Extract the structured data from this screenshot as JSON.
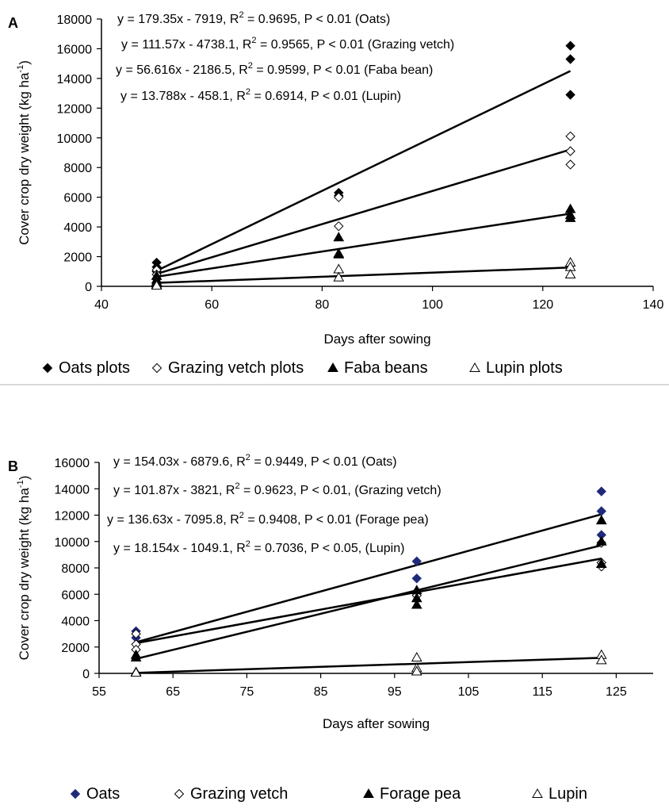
{
  "chart_data": [
    {
      "panel_label": "A",
      "type": "scatter",
      "xlabel": "Days after sowing",
      "ylabel_main": "Cover crop dry weight (kg ha",
      "ylabel_sup": "-1",
      "ylabel_close": ")",
      "xlim": [
        40,
        140
      ],
      "ylim": [
        0,
        18000
      ],
      "xticks": [
        40,
        60,
        80,
        100,
        120,
        140
      ],
      "yticks": [
        0,
        2000,
        4000,
        6000,
        8000,
        10000,
        12000,
        14000,
        16000,
        18000
      ],
      "series": [
        {
          "name": "Oats plots",
          "marker": "diamond-filled",
          "color": "#000000",
          "points": [
            [
              50,
              1600
            ],
            [
              50,
              1300
            ],
            [
              50,
              1000
            ],
            [
              83,
              6300
            ],
            [
              83,
              6100
            ],
            [
              125,
              16200
            ],
            [
              125,
              15300
            ],
            [
              125,
              12900
            ]
          ],
          "fit": {
            "slope": 179.35,
            "intercept": -7919
          }
        },
        {
          "name": "Grazing vetch plots",
          "marker": "diamond-open",
          "color": "#000000",
          "points": [
            [
              50,
              1100
            ],
            [
              50,
              800
            ],
            [
              50,
              500
            ],
            [
              83,
              6000
            ],
            [
              83,
              4050
            ],
            [
              125,
              10100
            ],
            [
              125,
              9100
            ],
            [
              125,
              8200
            ]
          ],
          "fit": {
            "slope": 111.57,
            "intercept": -4738.1
          }
        },
        {
          "name": "Faba beans",
          "marker": "triangle-filled",
          "color": "#000000",
          "points": [
            [
              50,
              700
            ],
            [
              50,
              450
            ],
            [
              50,
              300
            ],
            [
              83,
              3300
            ],
            [
              83,
              2200
            ],
            [
              83,
              2150
            ],
            [
              125,
              5200
            ],
            [
              125,
              4800
            ],
            [
              125,
              4600
            ]
          ],
          "fit": {
            "slope": 56.616,
            "intercept": -2186.5
          }
        },
        {
          "name": "Lupin plots",
          "marker": "triangle-open",
          "color": "#000000",
          "points": [
            [
              50,
              200
            ],
            [
              50,
              100
            ],
            [
              50,
              50
            ],
            [
              83,
              1150
            ],
            [
              83,
              600
            ],
            [
              125,
              1600
            ],
            [
              125,
              1300
            ],
            [
              125,
              800
            ]
          ],
          "fit": {
            "slope": 13.788,
            "intercept": -458.1
          }
        }
      ],
      "equations": [
        {
          "main": "y = 179.35x - 7919, R",
          "sup": "2",
          "tail": " = 0.9695, P < 0.01 (Oats)"
        },
        {
          "main": "y = 111.57x - 4738.1, R",
          "sup": "2",
          "tail": " = 0.9565, P < 0.01 (Grazing vetch)"
        },
        {
          "main": "y = 56.616x - 2186.5, R",
          "sup": "2",
          "tail": " = 0.9599, P < 0.01 (Faba bean)"
        },
        {
          "main": "y = 13.788x - 458.1, R",
          "sup": "2",
          "tail": " = 0.6914, P < 0.01 (Lupin)"
        }
      ],
      "legend_placement": "bottom"
    },
    {
      "panel_label": "B",
      "type": "scatter",
      "xlabel": "Days after sowing",
      "ylabel_main": "Cover crop dry weight (kg ha",
      "ylabel_sup": "-1",
      "ylabel_close": ")",
      "xlim": [
        55,
        130
      ],
      "ylim": [
        0,
        16000
      ],
      "xticks": [
        55,
        65,
        75,
        85,
        95,
        105,
        115,
        125
      ],
      "yticks": [
        0,
        2000,
        4000,
        6000,
        8000,
        10000,
        12000,
        14000,
        16000
      ],
      "series": [
        {
          "name": "Oats",
          "marker": "diamond-filled",
          "color": "#1f2b7a",
          "points": [
            [
              60,
              3200
            ],
            [
              60,
              2700
            ],
            [
              98,
              8500
            ],
            [
              98,
              7200
            ],
            [
              123,
              13800
            ],
            [
              123,
              12300
            ],
            [
              123,
              10500
            ]
          ],
          "fit": {
            "slope": 154.03,
            "intercept": -6879.6
          }
        },
        {
          "name": "Grazing vetch",
          "marker": "diamond-open",
          "color": "#000000",
          "points": [
            [
              60,
              3000
            ],
            [
              60,
              2200
            ],
            [
              60,
              1800
            ],
            [
              98,
              6200
            ],
            [
              98,
              5900
            ],
            [
              123,
              9900
            ],
            [
              123,
              8400
            ],
            [
              123,
              8100
            ]
          ],
          "fit": {
            "slope": 101.87,
            "intercept": -3821
          }
        },
        {
          "name": "Forage pea",
          "marker": "triangle-filled",
          "color": "#000000",
          "points": [
            [
              60,
              1400
            ],
            [
              60,
              1200
            ],
            [
              98,
              6300
            ],
            [
              98,
              5700
            ],
            [
              98,
              5200
            ],
            [
              123,
              11600
            ],
            [
              123,
              10000
            ],
            [
              123,
              8300
            ]
          ],
          "fit": {
            "slope": 136.63,
            "intercept": -7095.8
          }
        },
        {
          "name": "Lupin",
          "marker": "triangle-open",
          "color": "#000000",
          "points": [
            [
              60,
              100
            ],
            [
              60,
              50
            ],
            [
              98,
              1200
            ],
            [
              98,
              400
            ],
            [
              98,
              150
            ],
            [
              123,
              1400
            ],
            [
              123,
              1000
            ]
          ],
          "fit": {
            "slope": 18.154,
            "intercept": -1049.1
          }
        }
      ],
      "equations": [
        {
          "main": "y = 154.03x - 6879.6, R",
          "sup": "2",
          "tail": " = 0.9449, P < 0.01 (Oats)"
        },
        {
          "main": "y = 101.87x - 3821, R",
          "sup": "2",
          "tail": " = 0.9623, P < 0.01, (Grazing vetch)"
        },
        {
          "main": "y = 136.63x - 7095.8, R",
          "sup": "2",
          "tail": " = 0.9408, P < 0.01 (Forage pea)"
        },
        {
          "main": "y = 18.154x - 1049.1, R",
          "sup": "2",
          "tail": " = 0.7036, P < 0.05, (Lupin)"
        }
      ],
      "legend_placement": "bottom"
    }
  ]
}
